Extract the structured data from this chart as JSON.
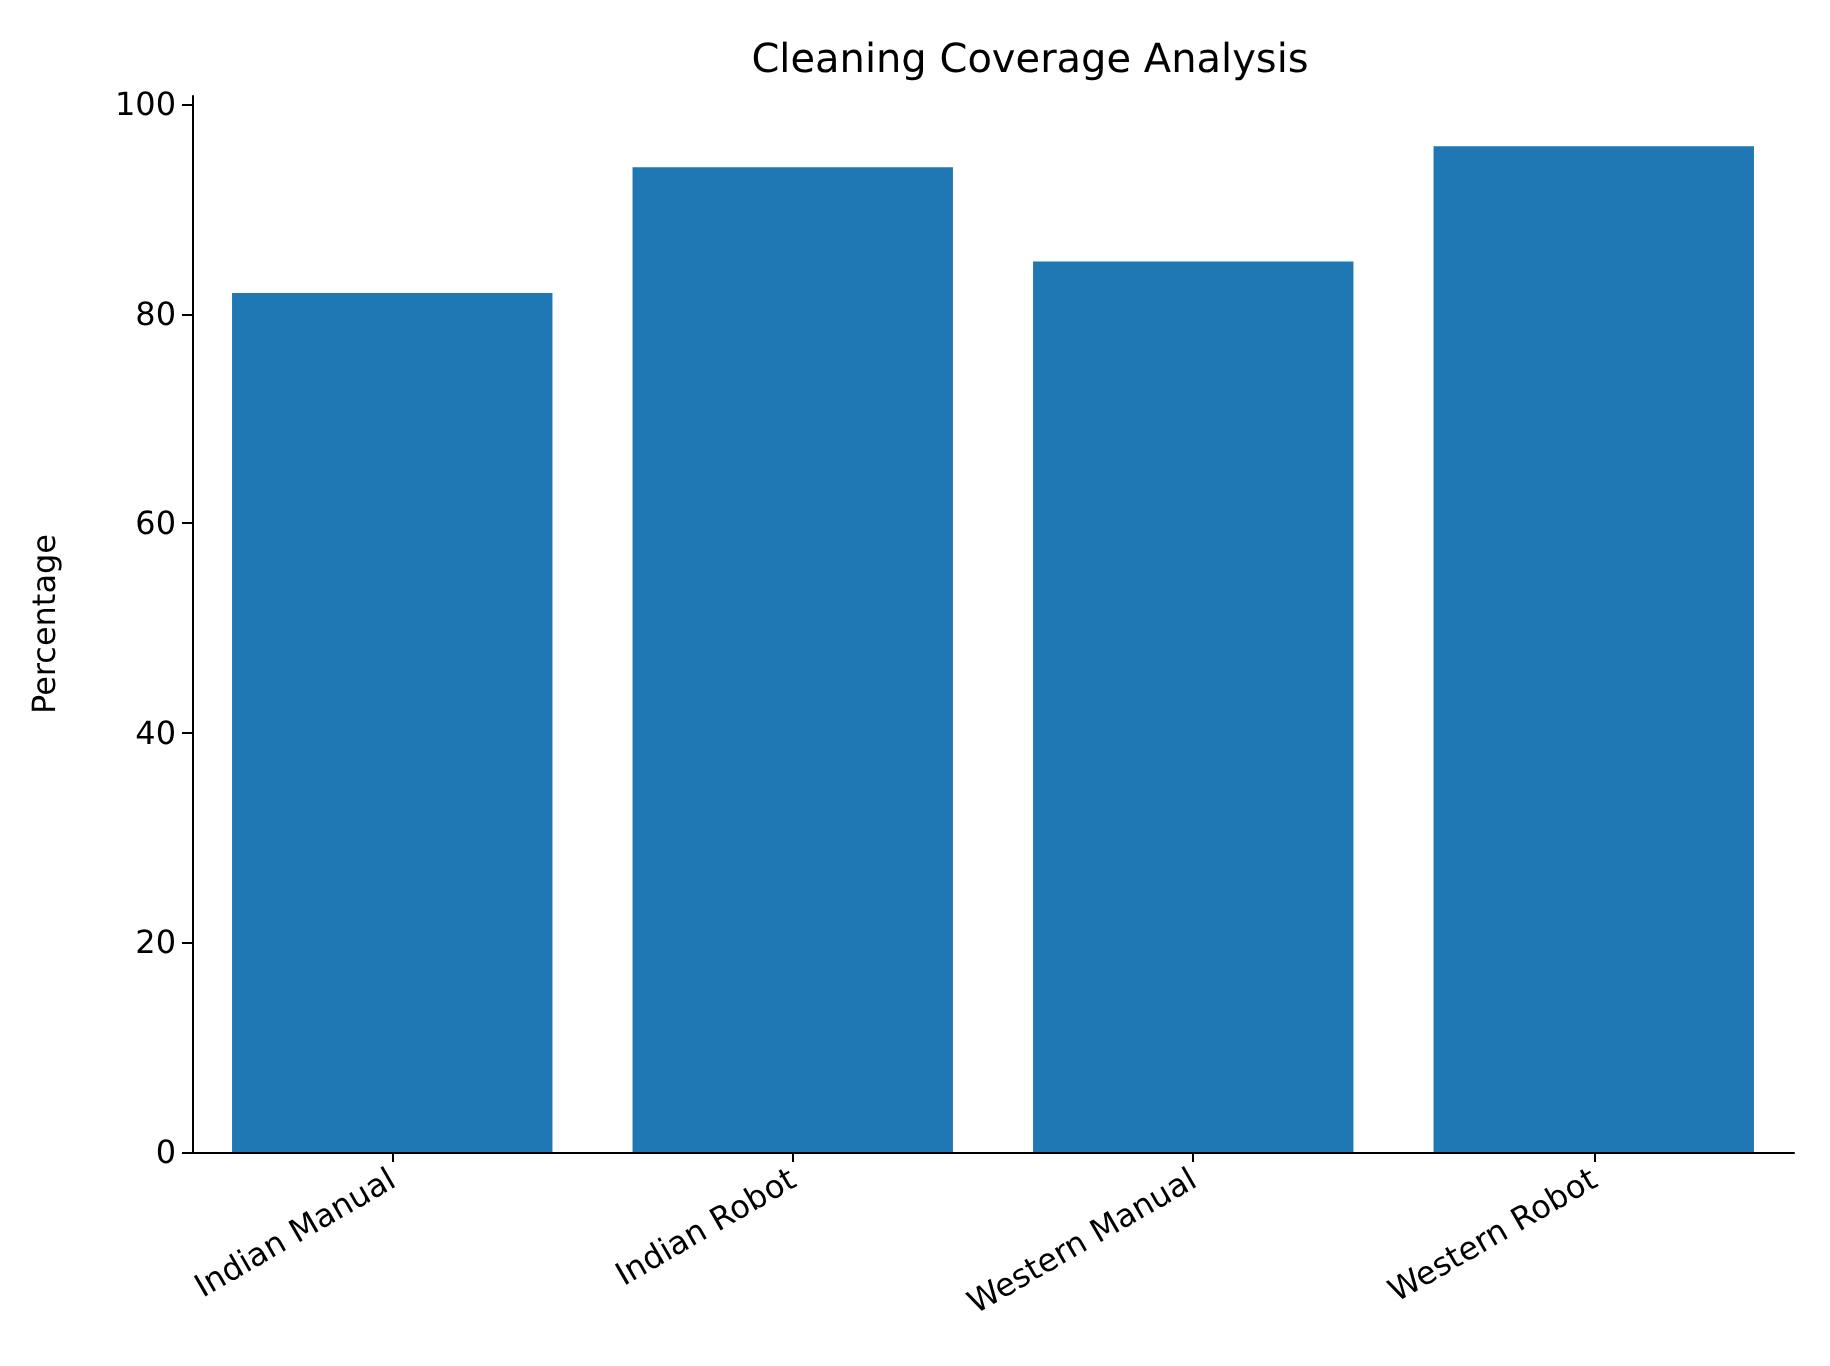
{
  "chart_data": {
    "type": "bar",
    "title": "Cleaning Coverage Analysis",
    "ylabel": "Percentage",
    "categories": [
      "Indian Manual",
      "Indian Robot",
      "Western Manual",
      "Western Robot"
    ],
    "values": [
      82,
      94,
      85,
      96
    ],
    "color": "#1f77b4",
    "ylim": [
      0,
      100.8
    ],
    "yticks": [
      0,
      20,
      40,
      60,
      80,
      100
    ],
    "grid": false
  }
}
